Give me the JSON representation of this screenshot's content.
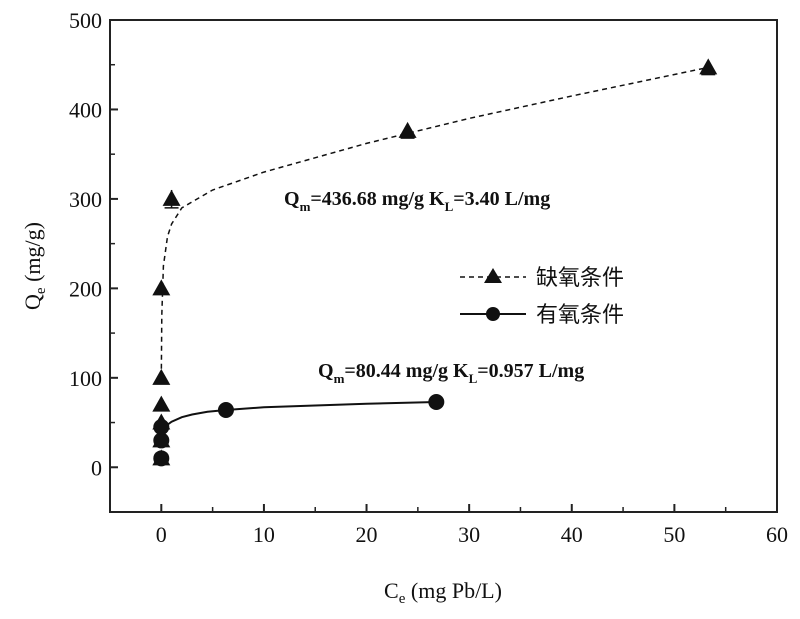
{
  "chart_data": {
    "type": "scatter",
    "xlabel": "C",
    "xlabel_sub": "e",
    "xlabel_unit": " (mg Pb/L)",
    "ylabel": "Q",
    "ylabel_sub": "e",
    "ylabel_unit": " (mg/g)",
    "xlim": [
      -5,
      60
    ],
    "ylim": [
      -50,
      500
    ],
    "xticks": [
      0,
      10,
      20,
      30,
      40,
      50,
      60
    ],
    "yticks": [
      0,
      100,
      200,
      300,
      400,
      500
    ],
    "legend_position": "center-right",
    "series": [
      {
        "name": "缺氧条件",
        "marker": "triangle",
        "line": "dashed",
        "x": [
          0,
          0,
          0,
          0,
          0,
          0,
          1,
          24,
          53.3
        ],
        "y": [
          10,
          30,
          50,
          70,
          100,
          200,
          300,
          376,
          447
        ],
        "error_y": [
          0,
          0,
          0,
          0,
          0,
          0,
          10,
          8,
          8
        ],
        "fit_x": [
          0,
          0.05,
          0.2,
          0.6,
          1,
          2,
          5,
          10,
          20,
          30,
          40,
          53.3
        ],
        "fit_y": [
          100,
          170,
          225,
          258,
          272,
          290,
          310,
          330,
          362,
          390,
          415,
          447
        ],
        "annotation": {
          "q": "Q",
          "q_sub": "m",
          "q_text": "=436.68 mg/g ",
          "k": "K",
          "k_sub": "L",
          "k_text": "=3.40 L/mg"
        }
      },
      {
        "name": "有氧条件",
        "marker": "circle",
        "line": "solid",
        "x": [
          0,
          0,
          0,
          6.3,
          26.8
        ],
        "y": [
          10,
          30,
          45,
          64,
          73
        ],
        "fit_x": [
          0.3,
          1,
          2,
          3,
          4.5,
          6.3,
          10,
          15,
          20,
          26.8
        ],
        "fit_y": [
          45,
          51,
          56,
          59,
          62,
          64,
          67,
          69,
          71,
          73
        ],
        "annotation": {
          "q": "Q",
          "q_sub": "m",
          "q_text": "=80.44 mg/g ",
          "k": "K",
          "k_sub": "L",
          "k_text": "=0.957 L/mg"
        }
      }
    ]
  }
}
